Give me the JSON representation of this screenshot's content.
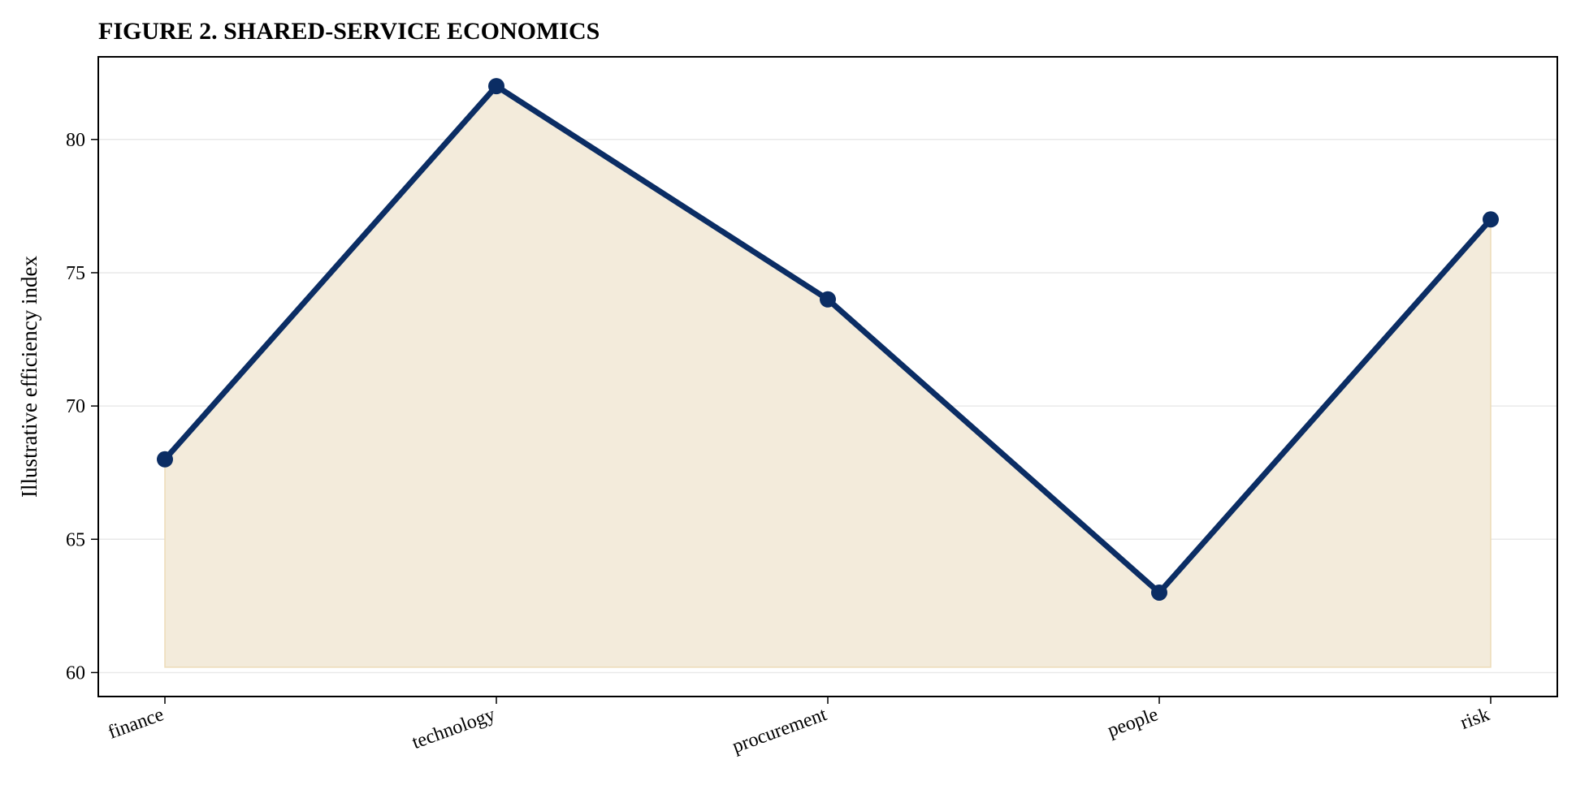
{
  "chart_data": {
    "type": "area",
    "title": "FIGURE 2. SHARED-SERVICE ECONOMICS",
    "xlabel": "",
    "ylabel": "Illustrative efficiency index",
    "categories": [
      "finance",
      "technology",
      "procurement",
      "people",
      "risk"
    ],
    "series": [
      {
        "values": [
          68,
          82,
          74,
          63,
          77
        ]
      }
    ],
    "ylim": [
      59.1,
      83.1
    ],
    "yticks": [
      60,
      65,
      70,
      75,
      80
    ],
    "area_baseline": 60.2,
    "grid": "horizontal",
    "legend": "none",
    "colors": {
      "line": "#0b2d64",
      "fill": "#f3ebdb",
      "fill_edge": "#eddcb8",
      "grid": "#e9e9e9",
      "axis": "#000000"
    }
  }
}
